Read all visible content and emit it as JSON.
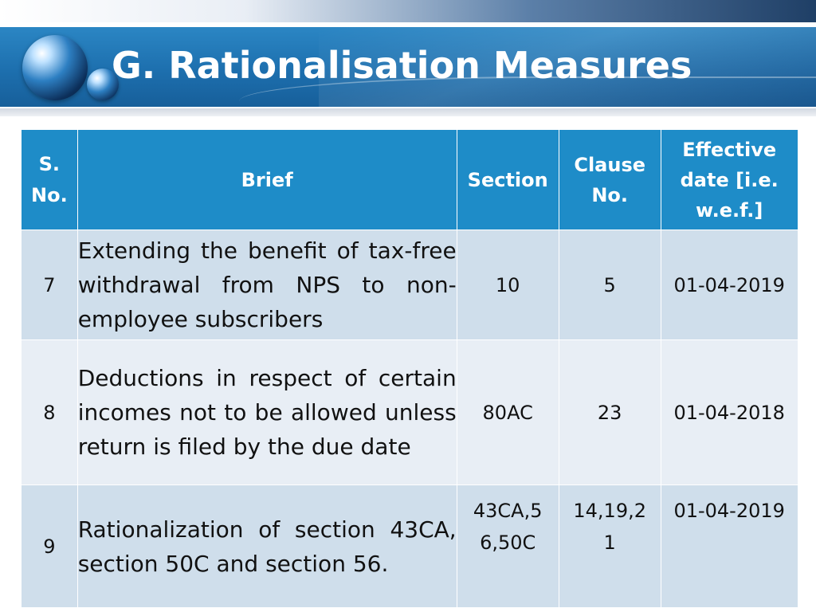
{
  "slide": {
    "title": "G. Rationalisation Measures"
  },
  "table": {
    "headers": {
      "sno": "S. No.",
      "brief": "Brief",
      "section": "Section",
      "clause": "Clause No.",
      "effective": "Effective date [i.e. w.e.f.]"
    },
    "rows": [
      {
        "sno": "7",
        "brief": "Extending the benefit of tax-free withdrawal from NPS to non-employee subscribers",
        "section": "10",
        "clause": "5",
        "effective": "01-04-2019"
      },
      {
        "sno": "8",
        "brief": "Deductions in respect of certain incomes not to be allowed unless return is filed by the due date",
        "section": "80AC",
        "clause": "23",
        "effective": "01-04-2018"
      },
      {
        "sno": "9",
        "brief": "Rationalization of section 43CA, section 50C and section 56.",
        "section": "43CA,56,50C",
        "clause": "14,19,21",
        "effective": "01-04-2019"
      }
    ]
  }
}
